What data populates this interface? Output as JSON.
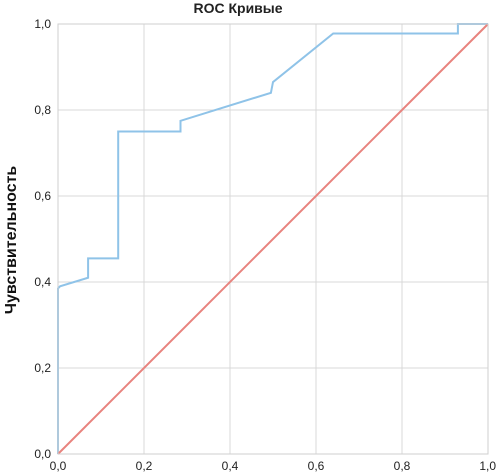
{
  "chart_data": {
    "type": "line",
    "title": "ROC Кривые",
    "xlabel": "",
    "ylabel": "Чувствительность",
    "xlim": [
      0,
      1
    ],
    "ylim": [
      0,
      1
    ],
    "grid": true,
    "x_ticks": [
      "0,0",
      "0,2",
      "0,4",
      "0,6",
      "0,8",
      "1,0"
    ],
    "y_ticks": [
      "0,0",
      "0,2",
      "0,4",
      "0,6",
      "0,8",
      "1,0"
    ],
    "series": [
      {
        "color": "#8fc3e8",
        "x": [
          0,
          0,
          0.005,
          0.07,
          0.07,
          0.14,
          0.14,
          0.285,
          0.285,
          0.495,
          0.5,
          0.64,
          0.93,
          0.93,
          1.0
        ],
        "y": [
          0,
          0.385,
          0.39,
          0.41,
          0.455,
          0.455,
          0.75,
          0.75,
          0.775,
          0.84,
          0.865,
          0.978,
          0.978,
          1.0,
          1.0
        ]
      },
      {
        "color": "#e8837e",
        "x": [
          0,
          1
        ],
        "y": [
          0,
          1
        ]
      }
    ]
  }
}
